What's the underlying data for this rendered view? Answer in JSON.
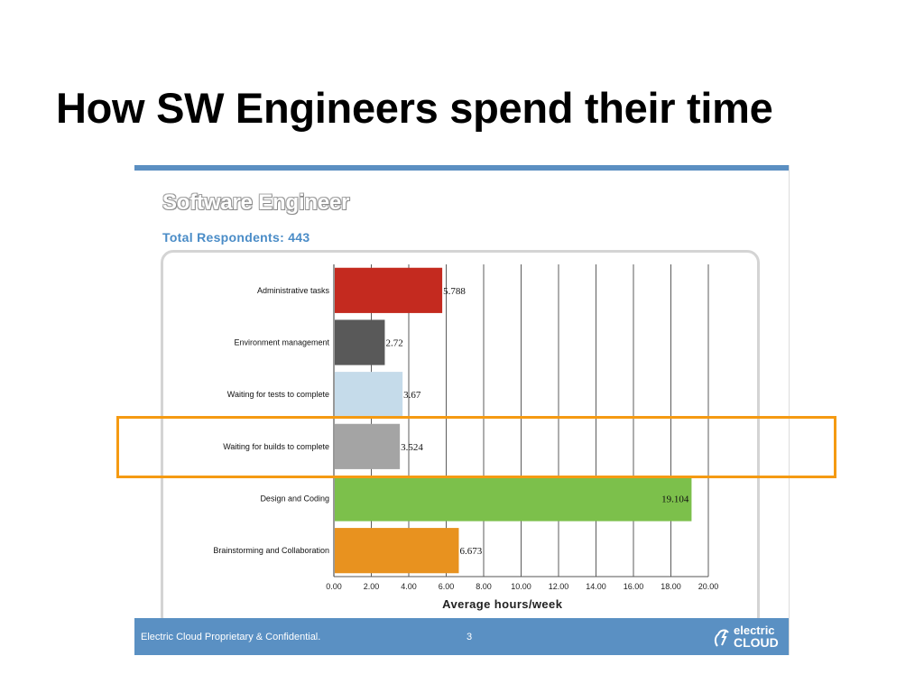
{
  "slide": {
    "title": "How SW Engineers spend their time"
  },
  "panel": {
    "title": "Software Engineer",
    "respondents": "Total Respondents: 443",
    "footer_text": "Electric Cloud Proprietary & Confidential.",
    "page_number": "3",
    "logo_line1": "electric",
    "logo_line2": "CLOUD"
  },
  "colors": {
    "accent_blue": "#5a90c3",
    "highlight": "#f59a12"
  },
  "chart_data": {
    "type": "bar",
    "orientation": "horizontal",
    "title": "Software Engineer",
    "xlabel": "Average hours/week",
    "ylabel": "",
    "xlim": [
      0,
      20
    ],
    "x_ticks": [
      "0.00",
      "2.00",
      "4.00",
      "6.00",
      "8.00",
      "10.00",
      "12.00",
      "14.00",
      "16.00",
      "18.00",
      "20.00"
    ],
    "grid": "vertical",
    "categories": [
      "Administrative tasks",
      "Environment management",
      "Waiting for tests to complete",
      "Waiting for builds to complete",
      "Design and Coding",
      "Brainstorming and Collaboration"
    ],
    "values": [
      5.788,
      2.72,
      3.67,
      3.524,
      19.104,
      6.673
    ],
    "value_labels": [
      "5.788",
      "2.72",
      "3.67",
      "3.524",
      "19.104",
      "6.673"
    ],
    "bar_colors": [
      "#c42a1f",
      "#595959",
      "#c5dbea",
      "#a4a4a4",
      "#7cc04b",
      "#e8921f"
    ],
    "highlighted_category": "Waiting for builds to complete"
  }
}
